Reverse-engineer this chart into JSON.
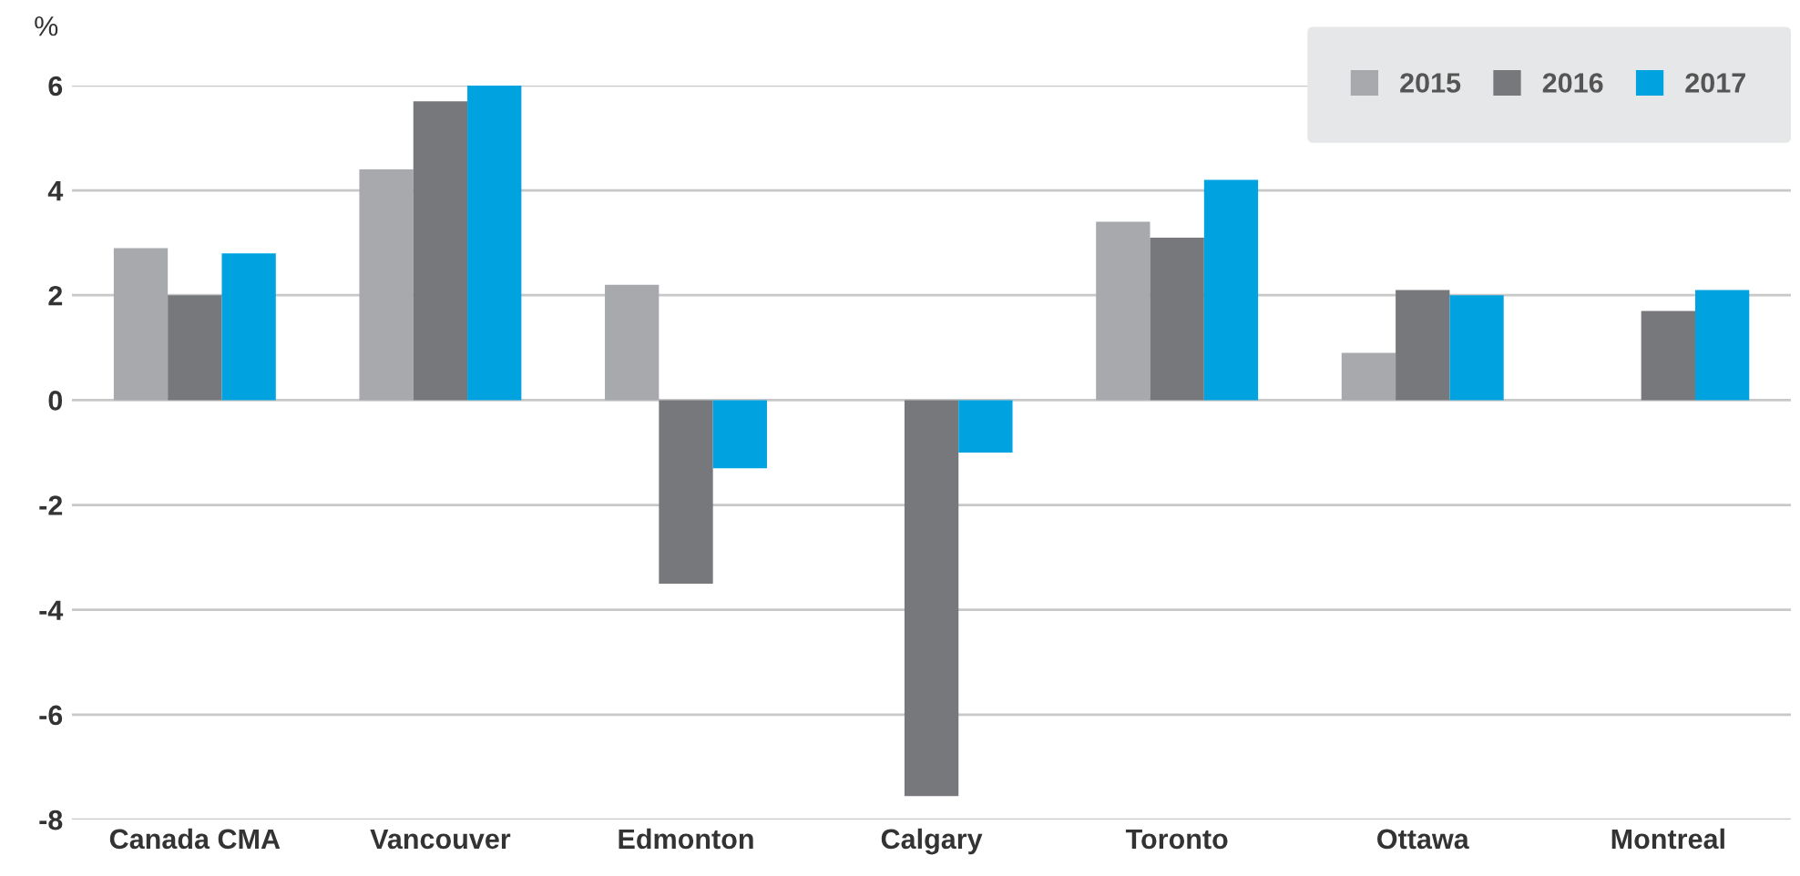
{
  "chart_data": {
    "type": "bar",
    "ylabel": "%",
    "categories": [
      "Canada CMA",
      "Vancouver",
      "Edmonton",
      "Calgary",
      "Toronto",
      "Ottawa",
      "Montreal"
    ],
    "series": [
      {
        "name": "2015",
        "color": "#a7a9ac",
        "values": [
          2.9,
          4.4,
          2.2,
          null,
          3.4,
          0.9,
          null
        ]
      },
      {
        "name": "2016",
        "color": "#77787b",
        "values": [
          2.0,
          5.7,
          -3.5,
          -7.55,
          3.1,
          2.1,
          1.7
        ]
      },
      {
        "name": "2017",
        "color": "#00a3e0",
        "values": [
          2.8,
          6.0,
          -1.3,
          -1.0,
          4.2,
          2.0,
          2.1
        ]
      }
    ],
    "ylim": [
      -8,
      6
    ],
    "yticks": [
      -8,
      -6,
      -4,
      -2,
      0,
      2,
      4,
      6
    ],
    "grid": "y",
    "legend": "top right"
  }
}
